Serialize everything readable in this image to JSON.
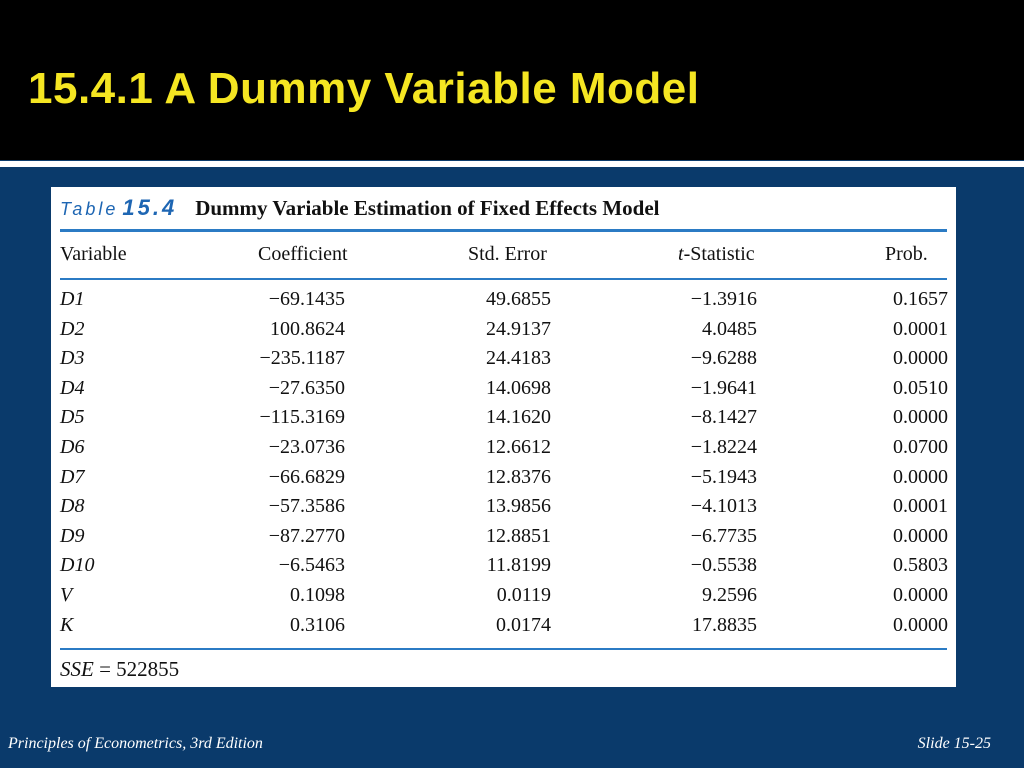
{
  "slide": {
    "title": "15.4.1 A Dummy Variable Model",
    "footer_left": "Principles of Econometrics, 3rd Edition",
    "footer_right": "Slide 15-25"
  },
  "table": {
    "caption_label": "Table",
    "caption_number": "15.4",
    "caption_text": "Dummy Variable Estimation of Fixed Effects Model",
    "headers": {
      "variable": "Variable",
      "coefficient": "Coefficient",
      "std_error": "Std. Error",
      "t_prefix": "t",
      "t_suffix": "-Statistic",
      "prob": "Prob."
    },
    "rows": [
      {
        "variable": "D1",
        "coefficient": "−69.1435",
        "std_error": "49.6855",
        "t_statistic": "−1.3916",
        "prob": "0.1657"
      },
      {
        "variable": "D2",
        "coefficient": "100.8624",
        "std_error": "24.9137",
        "t_statistic": "4.0485",
        "prob": "0.0001"
      },
      {
        "variable": "D3",
        "coefficient": "−235.1187",
        "std_error": "24.4183",
        "t_statistic": "−9.6288",
        "prob": "0.0000"
      },
      {
        "variable": "D4",
        "coefficient": "−27.6350",
        "std_error": "14.0698",
        "t_statistic": "−1.9641",
        "prob": "0.0510"
      },
      {
        "variable": "D5",
        "coefficient": "−115.3169",
        "std_error": "14.1620",
        "t_statistic": "−8.1427",
        "prob": "0.0000"
      },
      {
        "variable": "D6",
        "coefficient": "−23.0736",
        "std_error": "12.6612",
        "t_statistic": "−1.8224",
        "prob": "0.0700"
      },
      {
        "variable": "D7",
        "coefficient": "−66.6829",
        "std_error": "12.8376",
        "t_statistic": "−5.1943",
        "prob": "0.0000"
      },
      {
        "variable": "D8",
        "coefficient": "−57.3586",
        "std_error": "13.9856",
        "t_statistic": "−4.1013",
        "prob": "0.0001"
      },
      {
        "variable": "D9",
        "coefficient": "−87.2770",
        "std_error": "12.8851",
        "t_statistic": "−6.7735",
        "prob": "0.0000"
      },
      {
        "variable": "D10",
        "coefficient": "−6.5463",
        "std_error": "11.8199",
        "t_statistic": "−0.5538",
        "prob": "0.5803"
      },
      {
        "variable": "V",
        "coefficient": "0.1098",
        "std_error": "0.0119",
        "t_statistic": "9.2596",
        "prob": "0.0000"
      },
      {
        "variable": "K",
        "coefficient": "0.3106",
        "std_error": "0.0174",
        "t_statistic": "17.8835",
        "prob": "0.0000"
      }
    ],
    "sse_label": "SSE",
    "sse_equals": "=",
    "sse_value": "522855"
  },
  "colors": {
    "background": "#0a3a6b",
    "title_bar": "#000000",
    "title_text": "#f5e622",
    "caption_accent": "#1e66b3",
    "rule": "#2b7bc4"
  }
}
